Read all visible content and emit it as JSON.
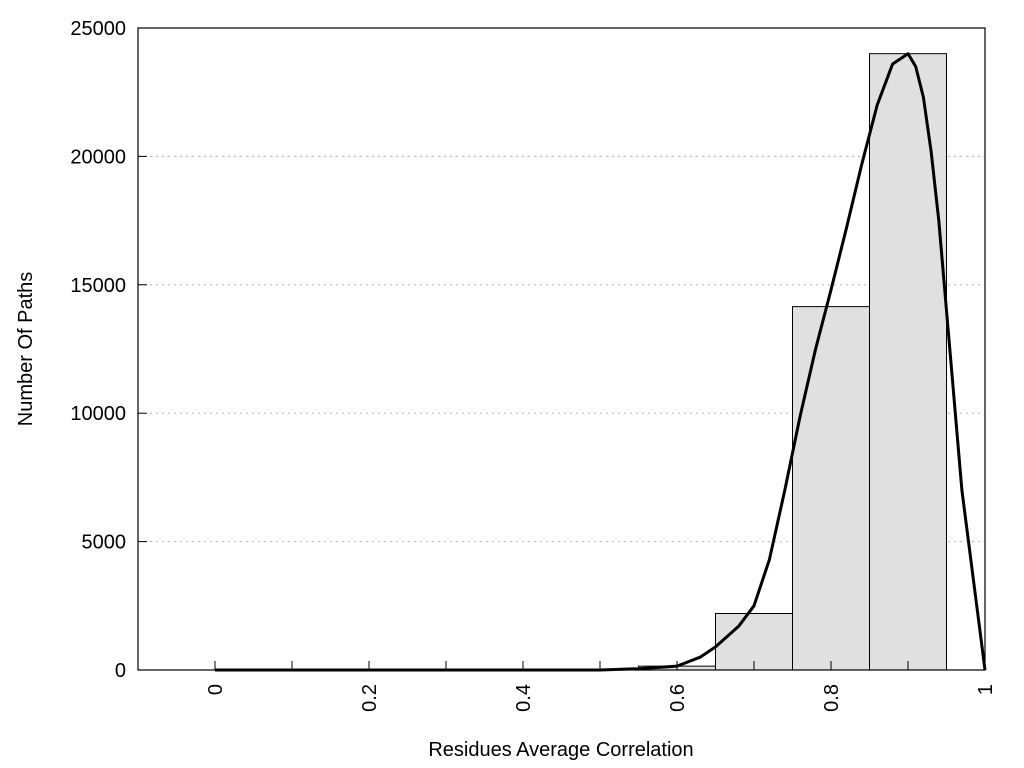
{
  "chart_data": {
    "type": "bar",
    "title": "",
    "xlabel": "Residues Average Correlation",
    "ylabel": "Number Of Paths",
    "xlim": [
      -0.1,
      1.0
    ],
    "ylim": [
      0,
      25000
    ],
    "x_ticks": [
      0,
      0.1,
      0.2,
      0.3,
      0.4,
      0.5,
      0.6,
      0.7,
      0.8,
      0.9,
      1.0
    ],
    "x_tick_labels": [
      {
        "value": 0,
        "label": "0"
      },
      {
        "value": 0.2,
        "label": "0.2"
      },
      {
        "value": 0.4,
        "label": "0.4"
      },
      {
        "value": 0.6,
        "label": "0.6"
      },
      {
        "value": 0.8,
        "label": "0.8"
      },
      {
        "value": 1.0,
        "label": "1"
      }
    ],
    "y_ticks": [
      0,
      5000,
      10000,
      15000,
      20000,
      25000
    ],
    "y_tick_labels": [
      "0",
      "5000",
      "10000",
      "15000",
      "20000",
      "25000"
    ],
    "grid": "horizontal dotted",
    "bars": {
      "bin_width": 0.1,
      "centers": [
        0.0,
        0.1,
        0.2,
        0.3,
        0.4,
        0.5,
        0.6,
        0.7,
        0.8,
        0.9
      ],
      "values": [
        0,
        0,
        0,
        0,
        0,
        10,
        150,
        2200,
        14150,
        24000
      ],
      "fill": "#e0e0e0",
      "stroke": "#000000"
    },
    "fit_curve": {
      "x": [
        0.0,
        0.1,
        0.2,
        0.3,
        0.4,
        0.5,
        0.55,
        0.6,
        0.63,
        0.65,
        0.68,
        0.7,
        0.72,
        0.74,
        0.76,
        0.78,
        0.8,
        0.82,
        0.84,
        0.86,
        0.88,
        0.9,
        0.91,
        0.92,
        0.93,
        0.94,
        0.95,
        0.97,
        1.0
      ],
      "y": [
        0,
        0,
        0,
        0,
        0,
        0,
        50,
        150,
        500,
        900,
        1700,
        2500,
        4300,
        7000,
        9900,
        12500,
        14800,
        17200,
        19700,
        22000,
        23600,
        24000,
        23500,
        22300,
        20200,
        17500,
        14000,
        7000,
        0
      ],
      "stroke": "#000000"
    }
  }
}
